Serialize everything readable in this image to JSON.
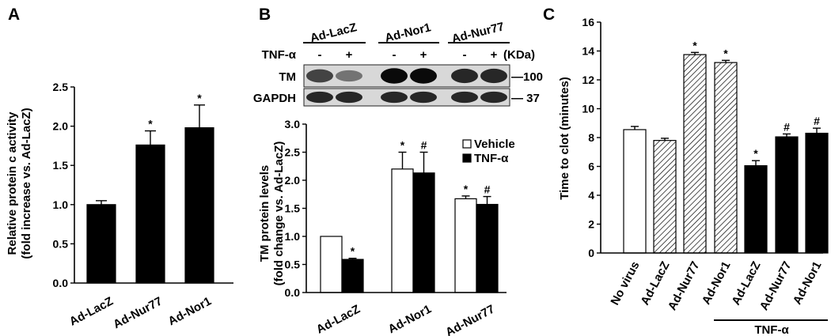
{
  "chart_data": [
    {
      "panel": "A",
      "type": "bar",
      "categories": [
        "Ad-LacZ",
        "Ad-Nur77",
        "Ad-Nor1"
      ],
      "series": [
        {
          "values": [
            1.0,
            1.76,
            1.98
          ],
          "errors": [
            0.05,
            0.18,
            0.29
          ],
          "fill": "#000000"
        }
      ],
      "annotations": [
        "",
        "*",
        "*"
      ],
      "ylabel_line1": "Relative protein c activity",
      "ylabel_line2": "(fold increase vs. Ad-LacZ)",
      "ylim": [
        0,
        2.5
      ],
      "yticks": [
        "0.0",
        "0.5",
        "1.0",
        "1.5",
        "2.0",
        "2.5"
      ]
    },
    {
      "panel": "B",
      "type": "bar",
      "categories": [
        "Ad-LacZ",
        "Ad-Nor1",
        "Ad-Nur77"
      ],
      "series": [
        {
          "name": "Vehicle",
          "values": [
            1.0,
            2.2,
            1.67
          ],
          "errors": [
            0.0,
            0.3,
            0.05
          ],
          "annotations": [
            "",
            "*",
            "*"
          ],
          "fill": "#ffffff"
        },
        {
          "name": "TNF-α",
          "values": [
            0.59,
            2.13,
            1.57
          ],
          "errors": [
            0.02,
            0.37,
            0.14
          ],
          "annotations": [
            "*",
            "#",
            "#"
          ],
          "fill": "#000000"
        }
      ],
      "ylabel_line1": "TM protein  levels",
      "ylabel_line2": "(fold change vs. Ad-LacZ)",
      "ylim": [
        0,
        3.0
      ],
      "yticks": [
        "0.0",
        "0.5",
        "1.0",
        "1.5",
        "2.0",
        "2.5",
        "3.0"
      ],
      "legend_position": "top-right",
      "blot": {
        "groups": [
          "Ad-LacZ",
          "Ad-Nor1",
          "Ad-Nur77"
        ],
        "treatment_label": "TNF-α",
        "lane_signs": [
          "-",
          "+",
          "-",
          "+",
          "-",
          "+"
        ],
        "unit_label": "(KDa)",
        "rows": [
          {
            "label": "TM",
            "marker": "—100",
            "intensities": [
              0.7,
              0.45,
              1.0,
              1.0,
              0.85,
              0.85
            ]
          },
          {
            "label": "GAPDH",
            "marker": "— 37",
            "intensities": [
              0.85,
              0.85,
              0.85,
              0.85,
              0.85,
              0.85
            ]
          }
        ]
      }
    },
    {
      "panel": "C",
      "type": "bar",
      "categories": [
        "No virus",
        "Ad-LacZ",
        "Ad-Nur77",
        "Ad-Nor1",
        "Ad-LacZ",
        "Ad-Nur77",
        "Ad-Nor1"
      ],
      "series": [
        {
          "values": [
            8.55,
            7.8,
            13.75,
            13.2,
            6.05,
            8.05,
            8.3
          ],
          "errors": [
            0.22,
            0.15,
            0.15,
            0.15,
            0.35,
            0.2,
            0.35
          ],
          "fills": [
            "white",
            "hatched",
            "hatched",
            "hatched",
            "black",
            "black",
            "black"
          ]
        }
      ],
      "annotations": [
        "",
        "",
        "*",
        "*",
        "*",
        "#",
        "#"
      ],
      "ylabel": "Time to clot (minutes)",
      "ylim": [
        0,
        16
      ],
      "yticks": [
        "0",
        "2",
        "4",
        "6",
        "8",
        "10",
        "12",
        "14",
        "16"
      ],
      "group_bracket_label": "TNF-α"
    }
  ]
}
